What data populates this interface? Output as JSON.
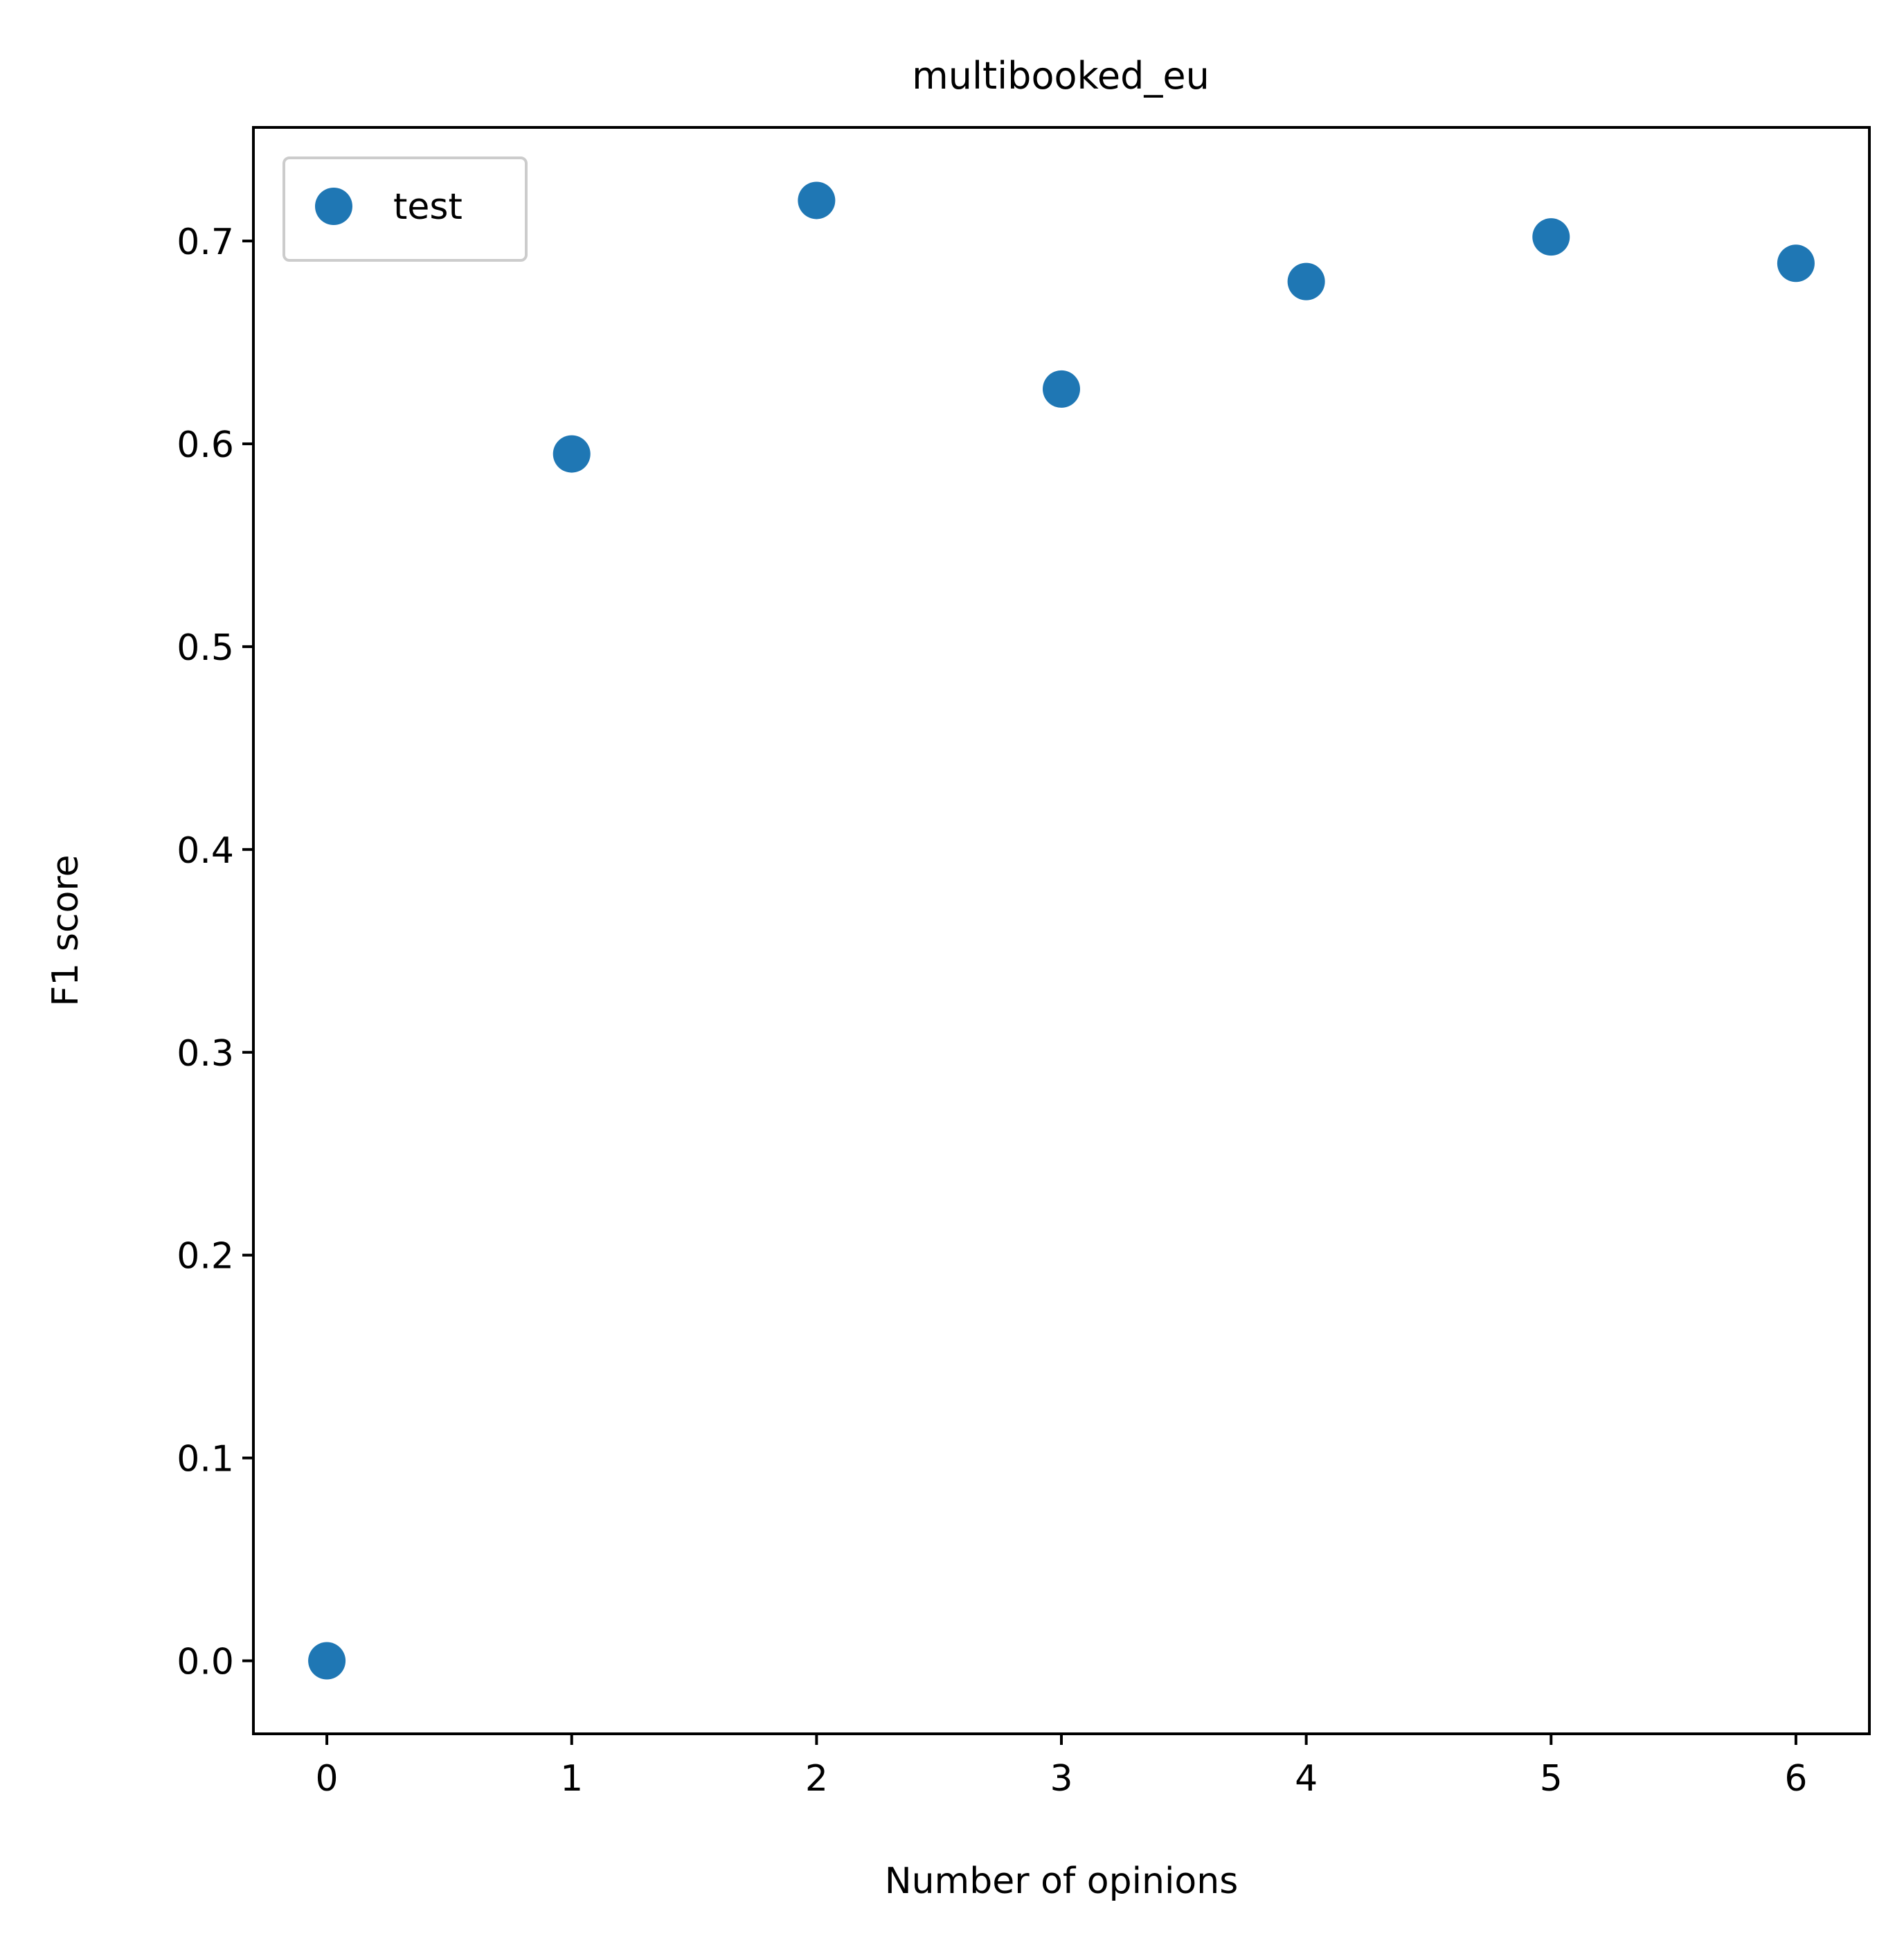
{
  "chart_data": {
    "type": "scatter",
    "title": "multibooked_eu",
    "xlabel": "Number of opinions",
    "ylabel": "F1 score",
    "xlim": [
      -0.3,
      6.3
    ],
    "ylim": [
      -0.036,
      0.756
    ],
    "xticks": [
      0,
      1,
      2,
      3,
      4,
      5,
      6
    ],
    "xtick_labels": [
      "0",
      "1",
      "2",
      "3",
      "4",
      "5",
      "6"
    ],
    "yticks": [
      0.0,
      0.1,
      0.2,
      0.3,
      0.4,
      0.5,
      0.6,
      0.7
    ],
    "ytick_labels": [
      "0.0",
      "0.1",
      "0.2",
      "0.3",
      "0.4",
      "0.5",
      "0.6",
      "0.7"
    ],
    "grid": false,
    "legend_position": "upper-left",
    "series": [
      {
        "name": "test",
        "color": "#1f77b4",
        "x": [
          0,
          1,
          2,
          3,
          4,
          5,
          6
        ],
        "y": [
          0.0,
          0.595,
          0.72,
          0.627,
          0.68,
          0.702,
          0.689
        ]
      }
    ]
  }
}
